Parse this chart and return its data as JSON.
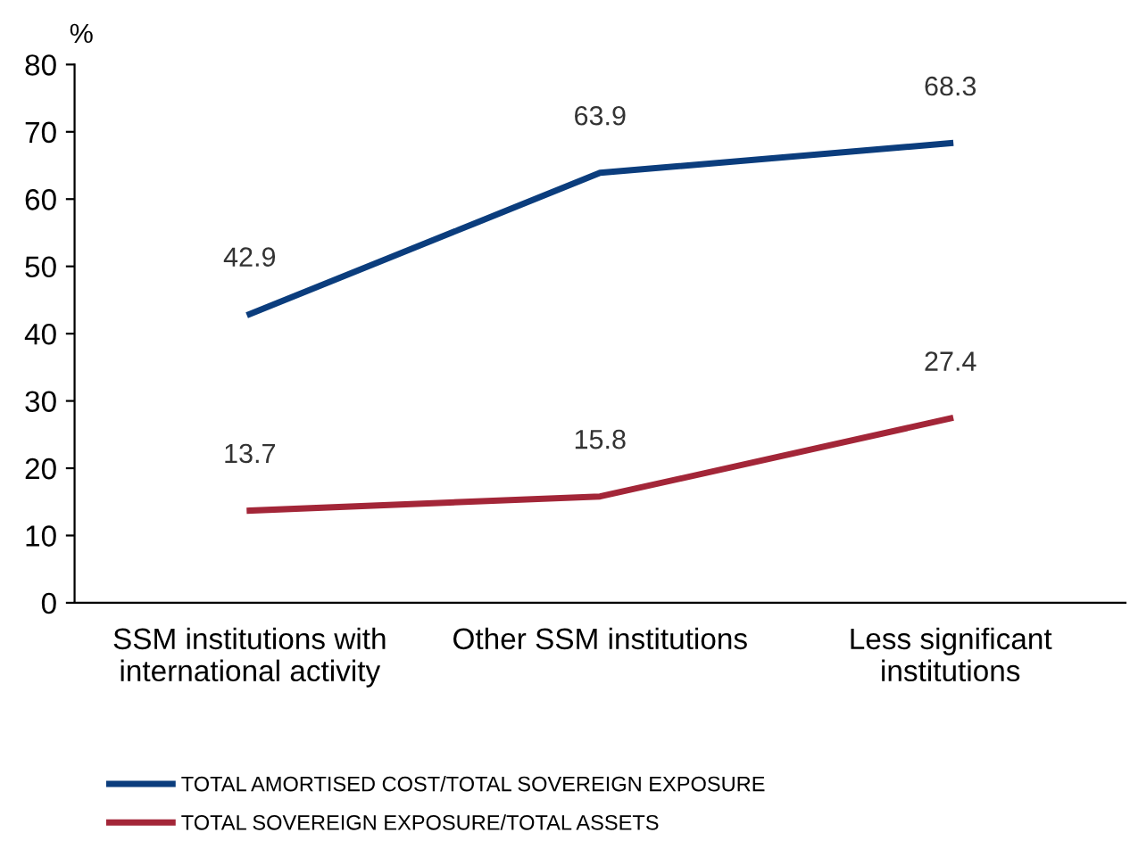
{
  "chart_data": {
    "type": "line",
    "ylabel": "%",
    "categories": [
      "SSM institutions with\ninternational activity",
      "Other SSM institutions",
      "Less significant\ninstitutions"
    ],
    "series": [
      {
        "name": "TOTAL AMORTISED COST/TOTAL SOVEREIGN EXPOSURE",
        "color": "#0b3d7d",
        "values": [
          42.9,
          63.9,
          68.3
        ]
      },
      {
        "name": "TOTAL SOVEREIGN EXPOSURE/TOTAL ASSETS",
        "color": "#a32638",
        "values": [
          13.7,
          15.8,
          27.4
        ]
      }
    ],
    "ylim": [
      0,
      80
    ],
    "yticks": [
      0,
      10,
      20,
      30,
      40,
      50,
      60,
      70,
      80
    ],
    "data_labels": true,
    "grid": false,
    "legend": "bottom",
    "marker": "none",
    "line_style": "solid"
  }
}
